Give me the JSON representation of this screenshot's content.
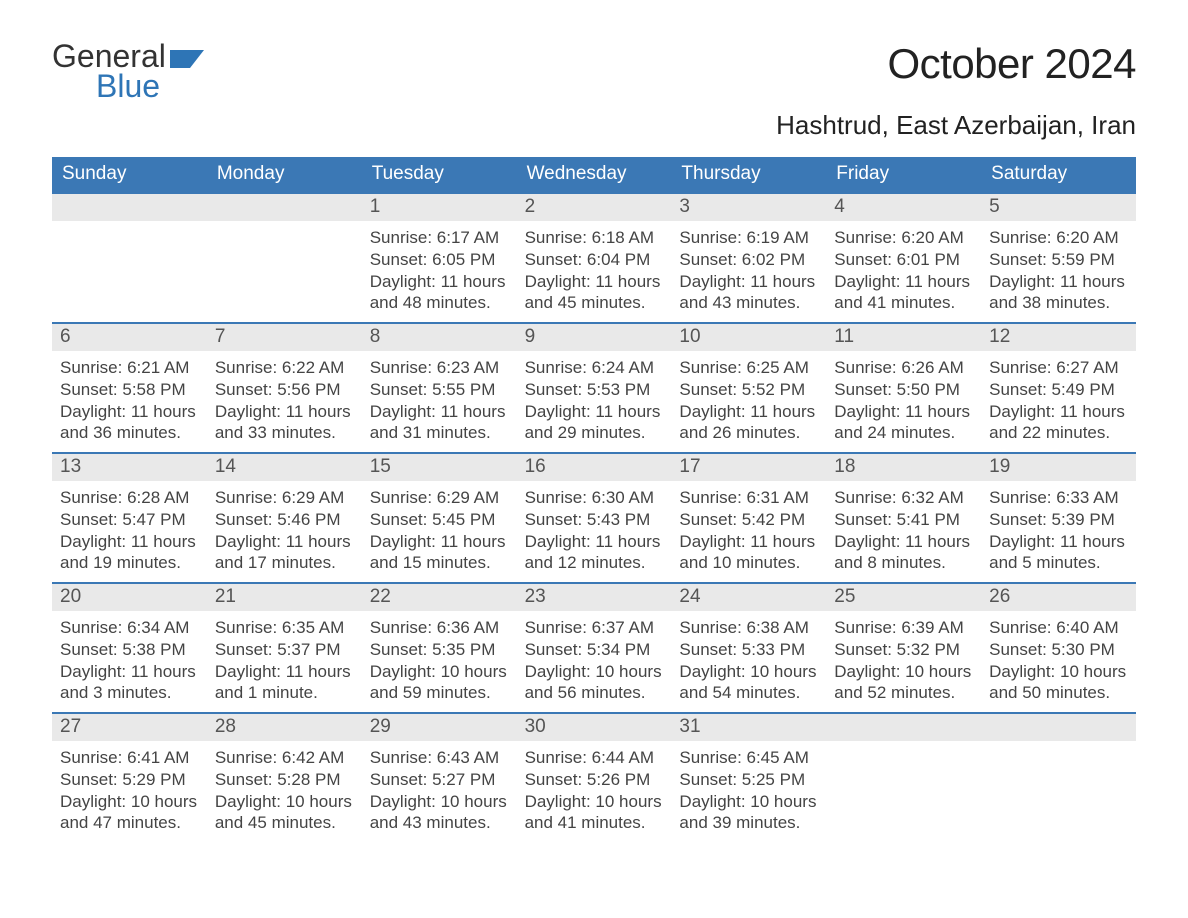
{
  "brand": {
    "word1": "General",
    "word2": "Blue",
    "accent_color": "#2e75b6"
  },
  "title": "October 2024",
  "location": "Hashtrud, East Azerbaijan, Iran",
  "calendar": {
    "header_bg": "#3b78b5",
    "header_fg": "#ffffff",
    "daynum_bg": "#e9e9e9",
    "week_border": "#3b78b5",
    "text_color": "#444444",
    "dow": [
      "Sunday",
      "Monday",
      "Tuesday",
      "Wednesday",
      "Thursday",
      "Friday",
      "Saturday"
    ],
    "labels": {
      "sunrise": "Sunrise: ",
      "sunset": "Sunset: ",
      "daylight": "Daylight: "
    },
    "leading_blanks": 2,
    "days": [
      {
        "n": "1",
        "sunrise": "6:17 AM",
        "sunset": "6:05 PM",
        "daylight": "11 hours and 48 minutes."
      },
      {
        "n": "2",
        "sunrise": "6:18 AM",
        "sunset": "6:04 PM",
        "daylight": "11 hours and 45 minutes."
      },
      {
        "n": "3",
        "sunrise": "6:19 AM",
        "sunset": "6:02 PM",
        "daylight": "11 hours and 43 minutes."
      },
      {
        "n": "4",
        "sunrise": "6:20 AM",
        "sunset": "6:01 PM",
        "daylight": "11 hours and 41 minutes."
      },
      {
        "n": "5",
        "sunrise": "6:20 AM",
        "sunset": "5:59 PM",
        "daylight": "11 hours and 38 minutes."
      },
      {
        "n": "6",
        "sunrise": "6:21 AM",
        "sunset": "5:58 PM",
        "daylight": "11 hours and 36 minutes."
      },
      {
        "n": "7",
        "sunrise": "6:22 AM",
        "sunset": "5:56 PM",
        "daylight": "11 hours and 33 minutes."
      },
      {
        "n": "8",
        "sunrise": "6:23 AM",
        "sunset": "5:55 PM",
        "daylight": "11 hours and 31 minutes."
      },
      {
        "n": "9",
        "sunrise": "6:24 AM",
        "sunset": "5:53 PM",
        "daylight": "11 hours and 29 minutes."
      },
      {
        "n": "10",
        "sunrise": "6:25 AM",
        "sunset": "5:52 PM",
        "daylight": "11 hours and 26 minutes."
      },
      {
        "n": "11",
        "sunrise": "6:26 AM",
        "sunset": "5:50 PM",
        "daylight": "11 hours and 24 minutes."
      },
      {
        "n": "12",
        "sunrise": "6:27 AM",
        "sunset": "5:49 PM",
        "daylight": "11 hours and 22 minutes."
      },
      {
        "n": "13",
        "sunrise": "6:28 AM",
        "sunset": "5:47 PM",
        "daylight": "11 hours and 19 minutes."
      },
      {
        "n": "14",
        "sunrise": "6:29 AM",
        "sunset": "5:46 PM",
        "daylight": "11 hours and 17 minutes."
      },
      {
        "n": "15",
        "sunrise": "6:29 AM",
        "sunset": "5:45 PM",
        "daylight": "11 hours and 15 minutes."
      },
      {
        "n": "16",
        "sunrise": "6:30 AM",
        "sunset": "5:43 PM",
        "daylight": "11 hours and 12 minutes."
      },
      {
        "n": "17",
        "sunrise": "6:31 AM",
        "sunset": "5:42 PM",
        "daylight": "11 hours and 10 minutes."
      },
      {
        "n": "18",
        "sunrise": "6:32 AM",
        "sunset": "5:41 PM",
        "daylight": "11 hours and 8 minutes."
      },
      {
        "n": "19",
        "sunrise": "6:33 AM",
        "sunset": "5:39 PM",
        "daylight": "11 hours and 5 minutes."
      },
      {
        "n": "20",
        "sunrise": "6:34 AM",
        "sunset": "5:38 PM",
        "daylight": "11 hours and 3 minutes."
      },
      {
        "n": "21",
        "sunrise": "6:35 AM",
        "sunset": "5:37 PM",
        "daylight": "11 hours and 1 minute."
      },
      {
        "n": "22",
        "sunrise": "6:36 AM",
        "sunset": "5:35 PM",
        "daylight": "10 hours and 59 minutes."
      },
      {
        "n": "23",
        "sunrise": "6:37 AM",
        "sunset": "5:34 PM",
        "daylight": "10 hours and 56 minutes."
      },
      {
        "n": "24",
        "sunrise": "6:38 AM",
        "sunset": "5:33 PM",
        "daylight": "10 hours and 54 minutes."
      },
      {
        "n": "25",
        "sunrise": "6:39 AM",
        "sunset": "5:32 PM",
        "daylight": "10 hours and 52 minutes."
      },
      {
        "n": "26",
        "sunrise": "6:40 AM",
        "sunset": "5:30 PM",
        "daylight": "10 hours and 50 minutes."
      },
      {
        "n": "27",
        "sunrise": "6:41 AM",
        "sunset": "5:29 PM",
        "daylight": "10 hours and 47 minutes."
      },
      {
        "n": "28",
        "sunrise": "6:42 AM",
        "sunset": "5:28 PM",
        "daylight": "10 hours and 45 minutes."
      },
      {
        "n": "29",
        "sunrise": "6:43 AM",
        "sunset": "5:27 PM",
        "daylight": "10 hours and 43 minutes."
      },
      {
        "n": "30",
        "sunrise": "6:44 AM",
        "sunset": "5:26 PM",
        "daylight": "10 hours and 41 minutes."
      },
      {
        "n": "31",
        "sunrise": "6:45 AM",
        "sunset": "5:25 PM",
        "daylight": "10 hours and 39 minutes."
      }
    ]
  }
}
